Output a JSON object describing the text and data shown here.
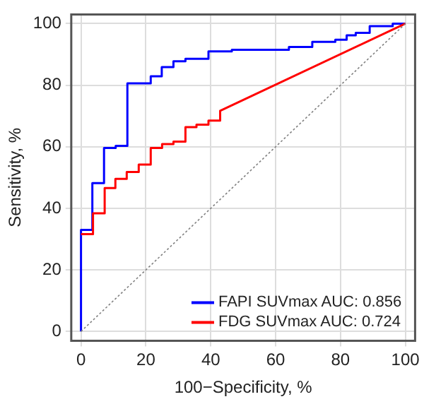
{
  "chart_data": {
    "type": "line",
    "xlabel": "100−Specificity, %",
    "ylabel": "Sensitivity, %",
    "xlim": [
      -3,
      103
    ],
    "ylim": [
      -3,
      103
    ],
    "xticks": [
      0,
      20,
      40,
      60,
      80,
      100
    ],
    "yticks": [
      0,
      20,
      40,
      60,
      80,
      100
    ],
    "grid": true,
    "legend": "bottom right",
    "marker": "none",
    "series": [
      {
        "name": "FAPI SUVmax AUC: 0.856",
        "color": "#0000ff",
        "x": [
          0,
          0,
          3.5,
          3.5,
          7.1,
          7.1,
          10.7,
          10.7,
          14.3,
          14.3,
          21.5,
          21.5,
          24.9,
          24.9,
          28.5,
          28.5,
          32.2,
          32.2,
          39.3,
          39.3,
          46.5,
          46.5,
          64.1,
          64.1,
          71.3,
          71.3,
          78.4,
          78.4,
          81.9,
          81.9,
          84.7,
          84.7,
          89,
          89,
          96.1,
          96.1,
          100
        ],
        "values": [
          0,
          33,
          33,
          48.2,
          48.2,
          59.6,
          59.6,
          60.3,
          60.3,
          80.6,
          80.6,
          82.9,
          82.9,
          85.9,
          85.9,
          87.8,
          87.8,
          88.6,
          88.6,
          91,
          91,
          91.5,
          91.5,
          92.4,
          92.4,
          94.1,
          94.1,
          94.8,
          94.8,
          96.2,
          96.2,
          97,
          97,
          99.2,
          99.2,
          100,
          100
        ]
      },
      {
        "name": "FDG SUVmax AUC: 0.724",
        "color": "#ff0000",
        "x": [
          0,
          3.7,
          3.7,
          7.3,
          7.3,
          10.6,
          10.6,
          14.1,
          14.1,
          17.8,
          17.8,
          21.5,
          21.5,
          25,
          25,
          28.5,
          28.5,
          32.2,
          32.2,
          35.6,
          35.6,
          39.3,
          39.3,
          42.9,
          42.9,
          100
        ],
        "values": [
          31.6,
          31.6,
          38.4,
          38.4,
          46.6,
          46.6,
          49.6,
          49.6,
          51.8,
          51.8,
          54.2,
          54.2,
          59.6,
          59.6,
          60.9,
          60.9,
          61.7,
          61.7,
          66.4,
          66.4,
          67.2,
          67.2,
          68.5,
          68.5,
          71.7,
          100
        ]
      },
      {
        "color": "#808080",
        "line_style": "dotted",
        "x": [
          0,
          100
        ],
        "values": [
          0,
          100
        ]
      }
    ]
  }
}
